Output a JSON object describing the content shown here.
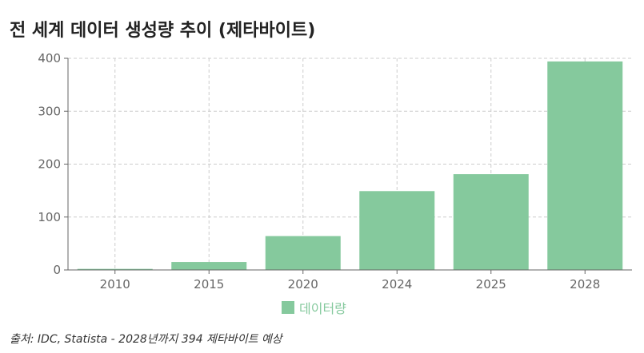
{
  "chart_data": {
    "type": "bar",
    "title": "전 세계 데이터 생성량 추이 (제타바이트)",
    "categories": [
      "2010",
      "2015",
      "2020",
      "2024",
      "2025",
      "2028"
    ],
    "series": [
      {
        "name": "데이터량",
        "values": [
          2,
          15,
          64,
          149,
          181,
          394
        ]
      }
    ],
    "ylim": [
      0,
      400
    ],
    "yticks": [
      0,
      100,
      200,
      300,
      400
    ],
    "grid": true,
    "legend_position": "bottom",
    "bar_color": "#85c99d",
    "grid_color": "#cccccc",
    "axis_color": "#666666"
  },
  "source_note": "출처: IDC, Statista - 2028년까지 394 제타바이트 예상"
}
